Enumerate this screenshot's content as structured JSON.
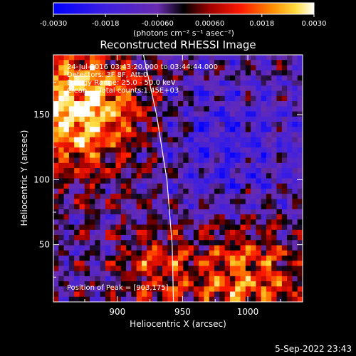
{
  "colorbar": {
    "tick_labels": [
      "-0.0030",
      "-0.0018",
      "-0.00060",
      "0.00060",
      "0.0018",
      "0.0030"
    ],
    "tick_values": [
      -0.003,
      -0.0018,
      -0.0006,
      0.0006,
      0.0018,
      0.003
    ],
    "range": [
      -0.003,
      0.003
    ],
    "units_label": "(photons cm⁻² s⁻¹ asec⁻²)"
  },
  "chart_data": {
    "type": "heatmap",
    "title": "Reconstructed RHESSI Image",
    "xlabel": "Heliocentric X (arcsec)",
    "ylabel": "Heliocentric Y (arcsec)",
    "xlim": [
      851,
      1042
    ],
    "ylim": [
      6,
      196
    ],
    "x_ticks": [
      900,
      950,
      1000
    ],
    "y_ticks": [
      50,
      100,
      150
    ],
    "info_lines": [
      "24-Jul-2016 03:43:20.000 to 03:44:44.000",
      "Detectors: 3F 8F, Att:0",
      "Energy Range: 25.0 - 50.0 keV",
      "Clean     Total counts:1.45E+03"
    ],
    "peak_label": "Position of Peak = [903,175]",
    "peak": [
      903,
      175
    ],
    "limb_curve": [
      [
        920,
        196
      ],
      [
        930,
        150
      ],
      [
        938,
        100
      ],
      [
        942,
        50
      ],
      [
        943,
        6
      ]
    ]
  },
  "footer": {
    "timestamp": "5-Sep-2022 23:43"
  },
  "colors": {
    "background": "#000000",
    "foreground": "#ffffff"
  }
}
